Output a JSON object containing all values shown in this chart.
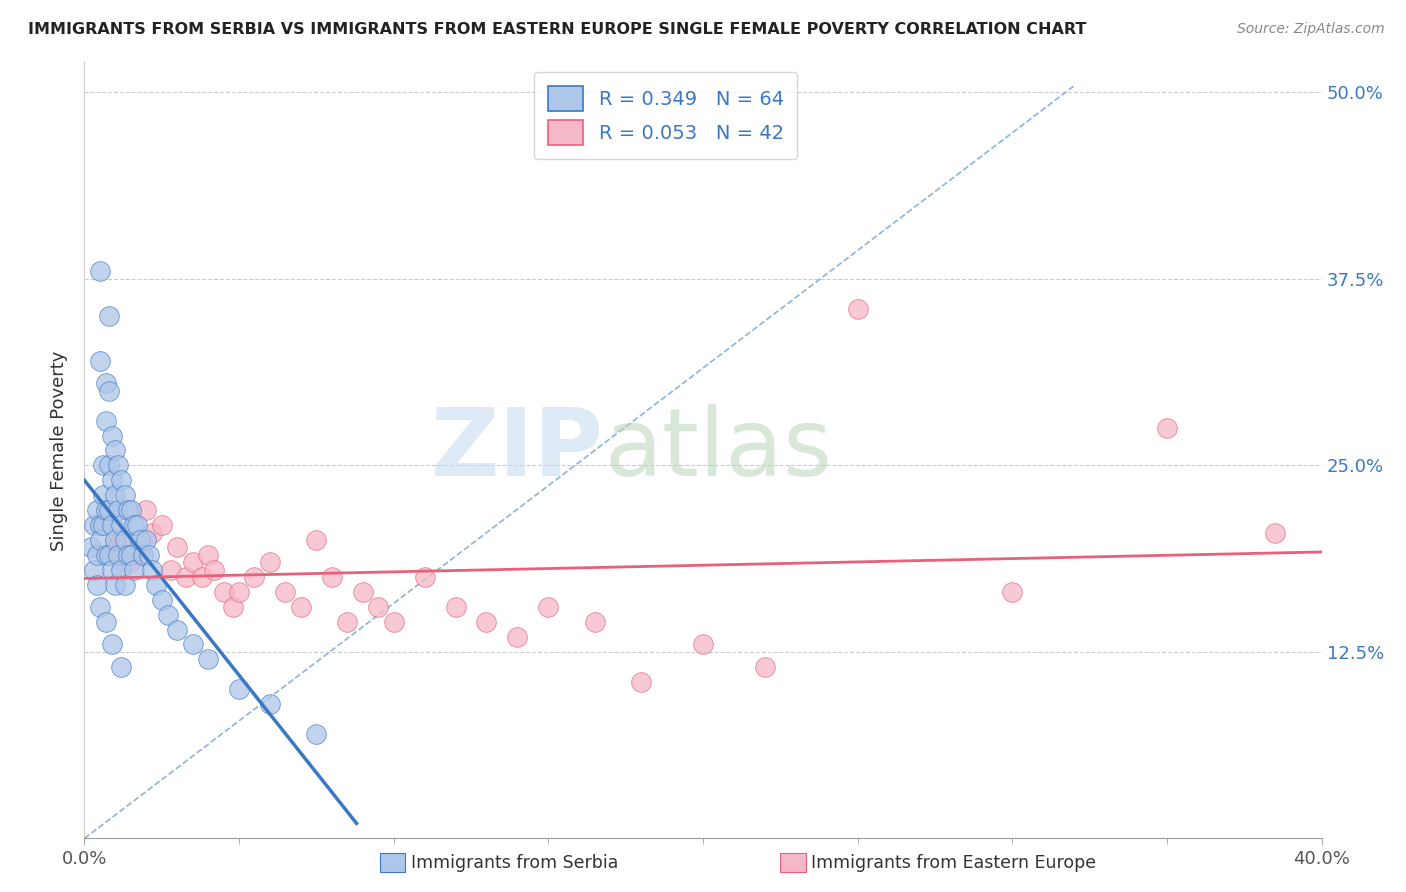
{
  "title": "IMMIGRANTS FROM SERBIA VS IMMIGRANTS FROM EASTERN EUROPE SINGLE FEMALE POVERTY CORRELATION CHART",
  "source": "Source: ZipAtlas.com",
  "ylabel": "Single Female Poverty",
  "legend_label1": "Immigrants from Serbia",
  "legend_label2": "Immigrants from Eastern Europe",
  "R1": 0.349,
  "N1": 64,
  "R2": 0.053,
  "N2": 42,
  "color1": "#aec6e8",
  "color2": "#f4b8c8",
  "line1_color": "#3b78c4",
  "line2_color": "#e8607a",
  "xmin": 0.0,
  "xmax": 0.4,
  "ymin": 0.0,
  "ymax": 0.52,
  "ytick_vals": [
    0.125,
    0.25,
    0.375,
    0.5
  ],
  "ytick_labels": [
    "12.5%",
    "25.0%",
    "37.5%",
    "50.0%"
  ],
  "blue_scatter_x": [
    0.002,
    0.003,
    0.003,
    0.004,
    0.004,
    0.004,
    0.005,
    0.005,
    0.005,
    0.005,
    0.006,
    0.006,
    0.006,
    0.007,
    0.007,
    0.007,
    0.007,
    0.008,
    0.008,
    0.008,
    0.008,
    0.008,
    0.009,
    0.009,
    0.009,
    0.009,
    0.01,
    0.01,
    0.01,
    0.01,
    0.011,
    0.011,
    0.011,
    0.012,
    0.012,
    0.012,
    0.013,
    0.013,
    0.013,
    0.014,
    0.014,
    0.015,
    0.015,
    0.016,
    0.016,
    0.017,
    0.018,
    0.019,
    0.02,
    0.021,
    0.022,
    0.023,
    0.025,
    0.027,
    0.03,
    0.035,
    0.04,
    0.05,
    0.06,
    0.075,
    0.005,
    0.007,
    0.009,
    0.012
  ],
  "blue_scatter_y": [
    0.195,
    0.21,
    0.18,
    0.22,
    0.19,
    0.17,
    0.38,
    0.32,
    0.21,
    0.2,
    0.25,
    0.23,
    0.21,
    0.305,
    0.28,
    0.22,
    0.19,
    0.35,
    0.3,
    0.25,
    0.22,
    0.19,
    0.27,
    0.24,
    0.21,
    0.18,
    0.26,
    0.23,
    0.2,
    0.17,
    0.25,
    0.22,
    0.19,
    0.24,
    0.21,
    0.18,
    0.23,
    0.2,
    0.17,
    0.22,
    0.19,
    0.22,
    0.19,
    0.21,
    0.18,
    0.21,
    0.2,
    0.19,
    0.2,
    0.19,
    0.18,
    0.17,
    0.16,
    0.15,
    0.14,
    0.13,
    0.12,
    0.1,
    0.09,
    0.07,
    0.155,
    0.145,
    0.13,
    0.115
  ],
  "pink_scatter_x": [
    0.005,
    0.008,
    0.01,
    0.012,
    0.015,
    0.018,
    0.02,
    0.022,
    0.025,
    0.028,
    0.03,
    0.033,
    0.035,
    0.038,
    0.04,
    0.042,
    0.045,
    0.048,
    0.05,
    0.055,
    0.06,
    0.065,
    0.07,
    0.075,
    0.08,
    0.085,
    0.09,
    0.095,
    0.1,
    0.11,
    0.12,
    0.13,
    0.14,
    0.15,
    0.165,
    0.18,
    0.2,
    0.22,
    0.25,
    0.3,
    0.35,
    0.385
  ],
  "pink_scatter_y": [
    0.21,
    0.19,
    0.195,
    0.2,
    0.185,
    0.19,
    0.22,
    0.205,
    0.21,
    0.18,
    0.195,
    0.175,
    0.185,
    0.175,
    0.19,
    0.18,
    0.165,
    0.155,
    0.165,
    0.175,
    0.185,
    0.165,
    0.155,
    0.2,
    0.175,
    0.145,
    0.165,
    0.155,
    0.145,
    0.175,
    0.155,
    0.145,
    0.135,
    0.155,
    0.145,
    0.105,
    0.13,
    0.115,
    0.355,
    0.165,
    0.275,
    0.205
  ]
}
